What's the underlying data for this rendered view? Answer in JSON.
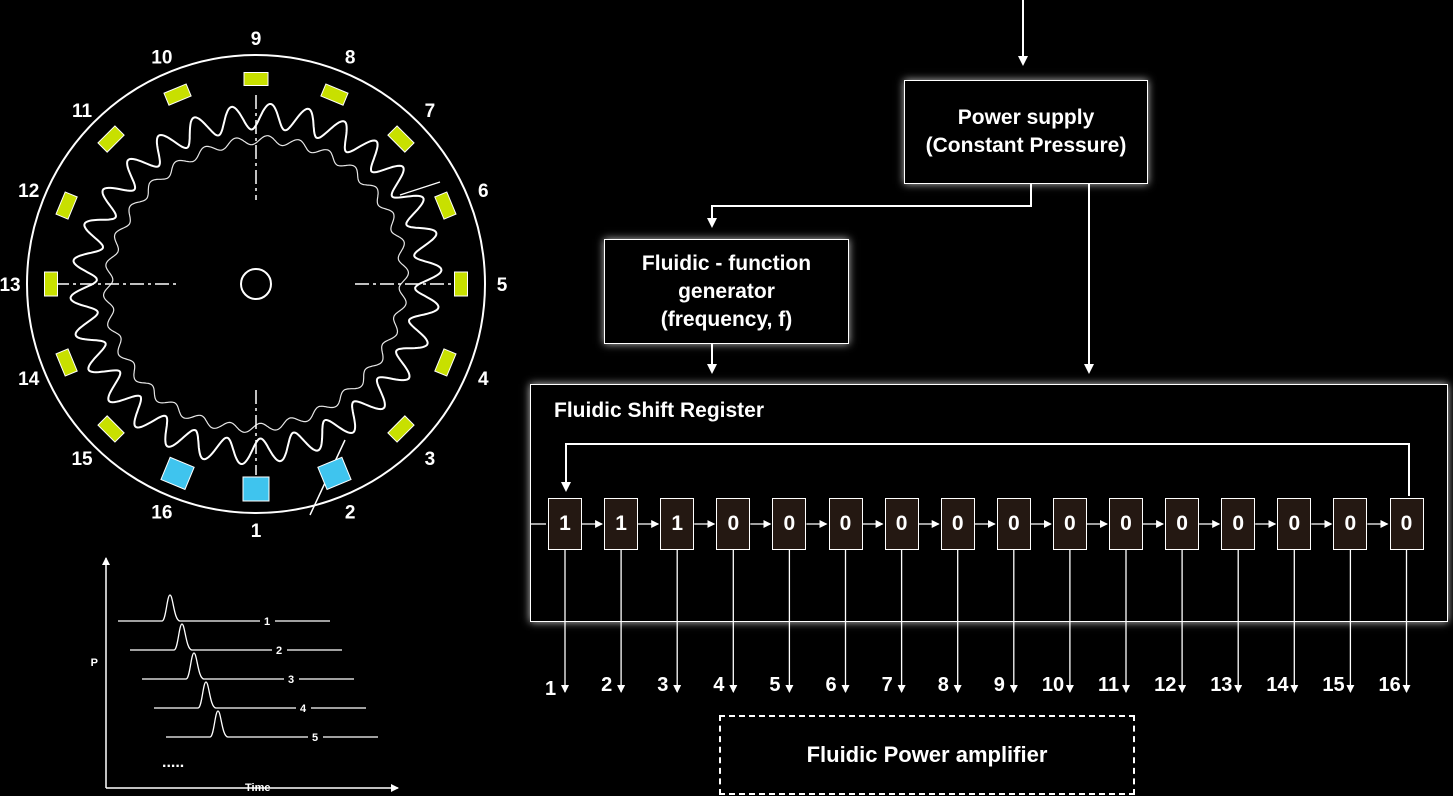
{
  "power_supply": {
    "line1": "Power supply",
    "line2": "(Constant Pressure)"
  },
  "function_generator": {
    "line1": "Fluidic - function",
    "line2": "generator",
    "line3": "(frequency, f)"
  },
  "shift_register": {
    "title": "Fluidic Shift Register",
    "cells": [
      "1",
      "1",
      "1",
      "0",
      "0",
      "0",
      "0",
      "0",
      "0",
      "0",
      "0",
      "0",
      "0",
      "0",
      "0",
      "0"
    ]
  },
  "outputs": [
    "1",
    "2",
    "3",
    "4",
    "5",
    "6",
    "7",
    "8",
    "9",
    "10",
    "11",
    "12",
    "13",
    "14",
    "15",
    "16"
  ],
  "power_amplifier": "Fluidic Power amplifier",
  "motor": {
    "stator_labels": [
      "1",
      "2",
      "3",
      "4",
      "5",
      "6",
      "7",
      "8",
      "9",
      "10",
      "11",
      "12",
      "13",
      "14",
      "15",
      "16"
    ],
    "active_stators": [
      "16",
      "1",
      "2"
    ],
    "colors": {
      "active": "#3fc4ee",
      "inactive": "#c8e000"
    }
  },
  "pulse_chart": {
    "y_label": "P",
    "x_label": "Time",
    "pulses": [
      "1",
      "2",
      "3",
      "4",
      "5"
    ],
    "ellipsis": "....."
  }
}
